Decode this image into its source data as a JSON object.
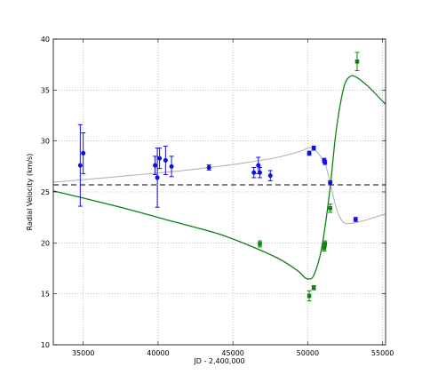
{
  "chart_data": {
    "type": "scatter",
    "title": "",
    "xlabel": "JD - 2,400,000",
    "ylabel": "Radial Velocity (km/s)",
    "xlim": [
      33000,
      55200
    ],
    "ylim": [
      10,
      40
    ],
    "xticks": [
      35000,
      40000,
      45000,
      50000,
      55000
    ],
    "yticks": [
      10,
      15,
      20,
      25,
      30,
      35,
      40
    ],
    "grid": true,
    "legend": "none",
    "reference_line": {
      "y": 25.7,
      "style": "dashed",
      "color": "#333333"
    },
    "series": [
      {
        "marker": "circle",
        "color": "#1010dd",
        "points": [
          {
            "x": 34800,
            "y": 27.6,
            "err": 4.0
          },
          {
            "x": 35000,
            "y": 28.8,
            "err": 2.0
          },
          {
            "x": 39800,
            "y": 27.6,
            "err": 0.9
          },
          {
            "x": 39950,
            "y": 26.4,
            "err": 2.9
          },
          {
            "x": 40100,
            "y": 28.3,
            "err": 1.0
          },
          {
            "x": 40500,
            "y": 28.1,
            "err": 1.4
          },
          {
            "x": 40900,
            "y": 27.5,
            "err": 1.0
          },
          {
            "x": 43400,
            "y": 27.4,
            "err": 0.25
          },
          {
            "x": 46400,
            "y": 26.9,
            "err": 0.5
          },
          {
            "x": 46700,
            "y": 27.6,
            "err": 0.8
          },
          {
            "x": 46800,
            "y": 26.9,
            "err": 0.5
          },
          {
            "x": 47500,
            "y": 26.6,
            "err": 0.5
          },
          {
            "x": 50100,
            "y": 28.8,
            "err": 0.2
          },
          {
            "x": 50400,
            "y": 29.3,
            "err": 0.2
          },
          {
            "x": 51100,
            "y": 28.1,
            "err": 0.2
          },
          {
            "x": 51150,
            "y": 27.9,
            "err": 0.2
          },
          {
            "x": 51500,
            "y": 25.9,
            "err": 0.2
          },
          {
            "x": 53200,
            "y": 22.3,
            "err": 0.2
          }
        ]
      },
      {
        "marker": "square",
        "color": "#108010",
        "points": [
          {
            "x": 46800,
            "y": 19.9,
            "err": 0.3
          },
          {
            "x": 50100,
            "y": 14.8,
            "err": 0.5
          },
          {
            "x": 50400,
            "y": 15.6,
            "err": 0.2
          },
          {
            "x": 51100,
            "y": 19.5,
            "err": 0.3
          },
          {
            "x": 51150,
            "y": 19.9,
            "err": 0.3
          },
          {
            "x": 51500,
            "y": 23.4,
            "err": 0.4
          },
          {
            "x": 53300,
            "y": 37.8,
            "err": 0.9
          }
        ]
      }
    ],
    "curves": [
      {
        "color": "#b4b4b4",
        "points": [
          [
            33000,
            25.95
          ],
          [
            35000,
            26.2
          ],
          [
            38000,
            26.6
          ],
          [
            41000,
            27.0
          ],
          [
            44000,
            27.5
          ],
          [
            46000,
            27.9
          ],
          [
            48000,
            28.4
          ],
          [
            49500,
            29.0
          ],
          [
            50100,
            29.35
          ],
          [
            50400,
            29.2
          ],
          [
            50800,
            28.6
          ],
          [
            51200,
            27.6
          ],
          [
            51600,
            25.2
          ],
          [
            52000,
            23.0
          ],
          [
            52400,
            22.0
          ],
          [
            52800,
            21.9
          ],
          [
            53200,
            22.0
          ],
          [
            54000,
            22.3
          ],
          [
            55200,
            22.85
          ]
        ]
      },
      {
        "color": "#108010",
        "points": [
          [
            33000,
            25.1
          ],
          [
            35000,
            24.4
          ],
          [
            38000,
            23.3
          ],
          [
            41000,
            22.1
          ],
          [
            44000,
            20.9
          ],
          [
            46000,
            19.8
          ],
          [
            48000,
            18.5
          ],
          [
            49300,
            17.3
          ],
          [
            49800,
            16.6
          ],
          [
            50100,
            16.45
          ],
          [
            50400,
            16.8
          ],
          [
            50800,
            18.6
          ],
          [
            51100,
            21.0
          ],
          [
            51500,
            25.5
          ],
          [
            51900,
            31.0
          ],
          [
            52400,
            35.2
          ],
          [
            52800,
            36.3
          ],
          [
            53200,
            36.3
          ],
          [
            54000,
            35.4
          ],
          [
            55200,
            33.6
          ]
        ]
      }
    ]
  }
}
